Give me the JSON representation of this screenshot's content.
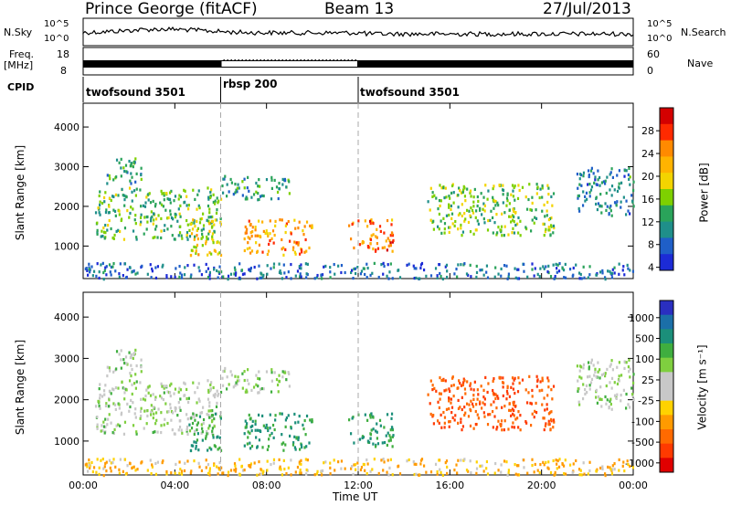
{
  "header": {
    "station": "Prince George (fitACF)",
    "beam": "Beam 13",
    "date": "27/Jul/2013"
  },
  "left_labels": {
    "nsky": "N.Sky",
    "nsky_hi": "10^5",
    "nsky_lo": "10^0",
    "freq": "Freq.",
    "freq_unit": "[MHz]",
    "freq_hi": "18",
    "freq_lo": "8",
    "cpid": "CPID"
  },
  "right_labels": {
    "nsearch": "N.Search",
    "nsearch_hi": "10^5",
    "nsearch_lo": "10^0",
    "nave": "Nave",
    "nave_hi": "60",
    "nave_lo": "0"
  },
  "cpid_segments": [
    {
      "label": "twofsound 3501",
      "start_hours": 0,
      "end_hours": 6
    },
    {
      "label": "rbsp 200",
      "start_hours": 6,
      "end_hours": 12
    },
    {
      "label": "twofsound 3501",
      "start_hours": 12,
      "end_hours": 24
    }
  ],
  "x_axis": {
    "title": "Time UT",
    "ticks": [
      "00:00",
      "04:00",
      "08:00",
      "12:00",
      "16:00",
      "20:00",
      "00:00"
    ],
    "range_hours": [
      0,
      24
    ]
  },
  "panels": {
    "power": {
      "ylabel": "Slant Range [km]",
      "yticks": [
        "4000",
        "3000",
        "2000",
        "1000"
      ],
      "cb_title": "Power [dB]",
      "cb_labels": [
        "28",
        "24",
        "20",
        "16",
        "12",
        "8",
        "4"
      ],
      "cb_colors": [
        "#d40000",
        "#ff2a00",
        "#ff8a00",
        "#ffb300",
        "#f3d400",
        "#7ed000",
        "#2aa35a",
        "#1f8f8a",
        "#1f5fc8",
        "#1c2bd6"
      ]
    },
    "velocity": {
      "ylabel": "Slant Range [km]",
      "yticks": [
        "4000",
        "3000",
        "2000",
        "1000"
      ],
      "cb_title": "Velocity [m s⁻¹]",
      "cb_labels": [
        "1000",
        "500",
        "100",
        "25",
        "-25",
        "-100",
        "-500",
        "-1000"
      ],
      "cb_colors": [
        "#2a2fc0",
        "#1b6fa8",
        "#1b8f7a",
        "#3fae3f",
        "#7fcf3f",
        "#c8c8c8",
        "#c8c8c8",
        "#ffd200",
        "#ff9a00",
        "#ff6a00",
        "#ff3a00",
        "#e00000"
      ]
    }
  },
  "chart_data": {
    "type": "heatmap",
    "title": "Prince George (fitACF)",
    "xlabel": "Time UT",
    "ylabel": "Slant Range [km]",
    "xlim_hours": [
      0,
      24
    ],
    "ylim_km": [
      180,
      4600
    ],
    "regions": [
      {
        "t0": 0.5,
        "t1": 6.0,
        "r0": 1200,
        "r1": 2500,
        "power_db": 12,
        "velocity": 25
      },
      {
        "t0": 1.0,
        "t1": 2.5,
        "r0": 2600,
        "r1": 3300,
        "power_db": 10,
        "velocity": 25
      },
      {
        "t0": 4.5,
        "t1": 6.0,
        "r0": 800,
        "r1": 1700,
        "power_db": 18,
        "velocity": 100
      },
      {
        "t0": 6.0,
        "t1": 9.0,
        "r0": 2200,
        "r1": 2800,
        "power_db": 10,
        "velocity": 25
      },
      {
        "t0": 7.0,
        "t1": 10.0,
        "r0": 800,
        "r1": 1700,
        "power_db": 22,
        "velocity": 100
      },
      {
        "t0": 11.5,
        "t1": 13.5,
        "r0": 900,
        "r1": 1700,
        "power_db": 24,
        "velocity": 100
      },
      {
        "t0": 15.0,
        "t1": 20.5,
        "r0": 1300,
        "r1": 2600,
        "power_db": 14,
        "velocity": -300
      },
      {
        "t0": 21.5,
        "t1": 24.0,
        "r0": 1800,
        "r1": 3000,
        "power_db": 8,
        "velocity": 25
      },
      {
        "t0": 0.0,
        "t1": 24.0,
        "r0": 200,
        "r1": 600,
        "power_db": 6,
        "velocity": -50
      }
    ]
  }
}
